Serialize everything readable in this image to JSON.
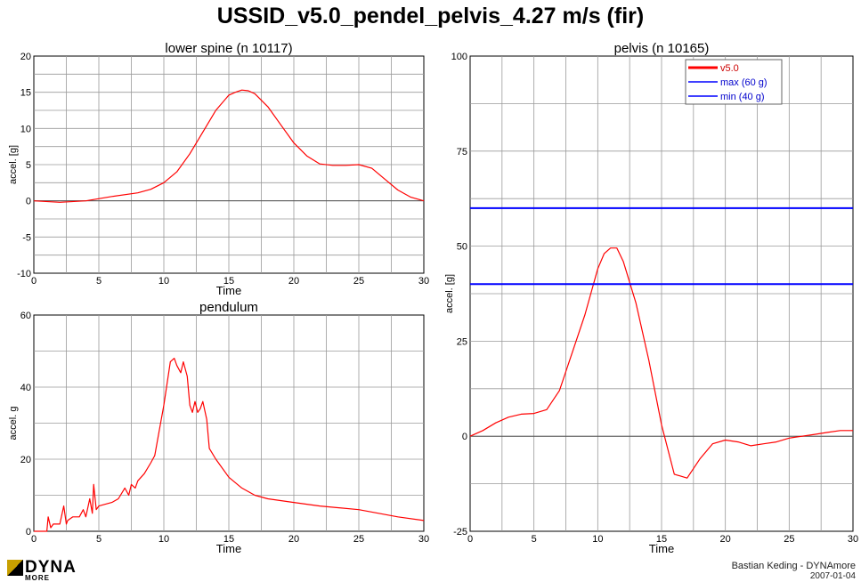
{
  "title": "USSID_v5.0_pendel_pelvis_4.27 m/s (fir)",
  "footer": {
    "author": "Bastian Keding - DYNAmore",
    "date": "2007-01-04"
  },
  "logo": {
    "text": "DYNA",
    "subtext": "MORE"
  },
  "colors": {
    "curve": "#ff0000",
    "limit": "#0000ff",
    "grid": "#9a9a9a",
    "zero": "#555555"
  },
  "chart_data": [
    {
      "id": "lower-spine",
      "type": "line",
      "title": "lower spine (n 10117)",
      "xlabel": "Time",
      "ylabel": "accel. [g]",
      "xlim": [
        0,
        30
      ],
      "ylim": [
        -10,
        20
      ],
      "xticks": [
        0,
        5,
        10,
        15,
        20,
        25,
        30
      ],
      "yticks": [
        -10,
        -5,
        0,
        5,
        10,
        15,
        20
      ],
      "grid": true,
      "series": [
        {
          "x": [
            0,
            2,
            4,
            6,
            8,
            9,
            10,
            11,
            12,
            13,
            14,
            15,
            15.5,
            16,
            16.5,
            17,
            18,
            19,
            20,
            21,
            22,
            23,
            24,
            25,
            26,
            27,
            28,
            29,
            30
          ],
          "y": [
            0,
            -0.2,
            0,
            0.6,
            1.1,
            1.6,
            2.5,
            4.0,
            6.5,
            9.5,
            12.5,
            14.6,
            15.0,
            15.3,
            15.2,
            14.8,
            13.0,
            10.5,
            8.0,
            6.2,
            5.1,
            4.9,
            4.9,
            5.0,
            4.5,
            3.0,
            1.5,
            0.5,
            0
          ]
        }
      ]
    },
    {
      "id": "pendulum",
      "type": "line",
      "title": "pendulum",
      "xlabel": "Time",
      "ylabel": "accel. g",
      "xlim": [
        0,
        30
      ],
      "ylim": [
        0,
        60
      ],
      "xticks": [
        0,
        5,
        10,
        15,
        20,
        25,
        30
      ],
      "yticks": [
        0,
        20,
        40,
        60
      ],
      "grid": true,
      "series": [
        {
          "x": [
            0,
            1.0,
            1.1,
            1.3,
            1.5,
            2.0,
            2.3,
            2.5,
            2.6,
            3.0,
            3.5,
            3.8,
            4.0,
            4.3,
            4.5,
            4.6,
            4.8,
            5.0,
            6.0,
            6.5,
            7.0,
            7.3,
            7.5,
            7.8,
            8.0,
            8.5,
            9.0,
            9.3,
            9.5,
            10.0,
            10.5,
            10.8,
            11.0,
            11.3,
            11.5,
            11.8,
            12.0,
            12.2,
            12.4,
            12.6,
            12.8,
            13.0,
            13.3,
            13.5,
            14.0,
            15.0,
            16.0,
            17.0,
            18.0,
            20.0,
            22.0,
            25.0,
            28.0,
            30.0
          ],
          "y": [
            0,
            0,
            4,
            1,
            2,
            2,
            7,
            2,
            3,
            4,
            4,
            6,
            4,
            9,
            5,
            13,
            6,
            7,
            8,
            9,
            12,
            10,
            13,
            12,
            14,
            16,
            19,
            21,
            25,
            35,
            47,
            48,
            46,
            44,
            47,
            43,
            35,
            33,
            36,
            33,
            34,
            36,
            31,
            23,
            20,
            15,
            12,
            10,
            9,
            8,
            7,
            6,
            4,
            3
          ]
        }
      ]
    },
    {
      "id": "pelvis",
      "type": "line",
      "title": "pelvis (n 10165)",
      "xlabel": "Time",
      "ylabel": "accel. [g]",
      "xlim": [
        0,
        30
      ],
      "ylim": [
        -25,
        100
      ],
      "xticks": [
        0,
        5,
        10,
        15,
        20,
        25,
        30
      ],
      "yticks": [
        -25,
        0,
        25,
        50,
        75,
        100
      ],
      "xtick_labels": [
        "0",
        "5",
        "10",
        "15",
        "20",
        "25",
        "30"
      ],
      "grid": true,
      "legend": "top-right",
      "series": [
        {
          "name": "v5.0",
          "x": [
            0,
            1,
            2,
            3,
            4,
            5,
            6,
            7,
            8,
            9,
            10,
            10.5,
            11,
            11.5,
            12,
            13,
            14,
            15,
            16,
            17,
            18,
            19,
            20,
            21,
            22,
            23,
            24,
            25,
            26,
            27,
            28,
            29,
            30
          ],
          "y": [
            0,
            1.5,
            3.5,
            5.0,
            5.8,
            6.0,
            7.0,
            12,
            22,
            32,
            44,
            48,
            49.5,
            49.5,
            46,
            35,
            20,
            3,
            -10,
            -11,
            -6,
            -2,
            -1,
            -1.5,
            -2.5,
            -2.0,
            -1.5,
            -0.5,
            0,
            0.5,
            1,
            1.5,
            1.5
          ]
        },
        {
          "name": "max (60 g)",
          "x": [
            0,
            30
          ],
          "y": [
            60,
            60
          ]
        },
        {
          "name": "min (40 g)",
          "x": [
            0,
            30
          ],
          "y": [
            40,
            40
          ]
        }
      ]
    }
  ]
}
